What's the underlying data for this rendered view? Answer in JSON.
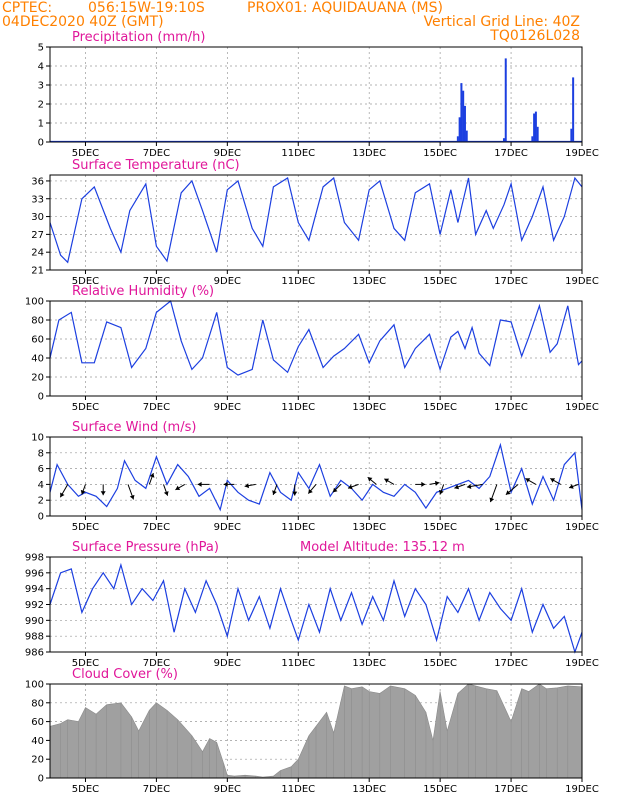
{
  "header": {
    "source": "CPTEC:",
    "coords": "056:15W-19:10S",
    "station": "PROX01: AQUIDAUANA (MS)",
    "run": "04DEC2020 40Z (GMT)",
    "grid_note": "Vertical Grid Line: 40Z",
    "model_code": "TQ0126L028"
  },
  "x_axis": {
    "start_day": 4,
    "end_day": 19,
    "tick_labels": [
      "5DEC",
      "7DEC",
      "9DEC",
      "11DEC",
      "13DEC",
      "15DEC",
      "17DEC",
      "19DEC"
    ],
    "tick_days": [
      5,
      7,
      9,
      11,
      13,
      15,
      17,
      19
    ]
  },
  "colors": {
    "line": "#1c3fe0",
    "title": "#e0179a",
    "header": "#ff8000",
    "cloud": "#a0a0a0",
    "arrow": "#000000"
  },
  "chart_data": [
    {
      "type": "bar",
      "title": "Precipitation (mm/h)",
      "ylim": [
        0,
        5
      ],
      "yticks": [
        "0",
        "1",
        "2",
        "3",
        "4",
        "5"
      ],
      "grid": true,
      "x": [
        11.0,
        11.3,
        11.5,
        12.0,
        15.5,
        15.55,
        15.6,
        15.65,
        15.7,
        15.75,
        16.8,
        16.85,
        17.6,
        17.65,
        17.7,
        17.75,
        18.7,
        18.75
      ],
      "values": [
        0.02,
        0.02,
        0.02,
        0.03,
        0.3,
        1.3,
        3.1,
        2.7,
        1.9,
        0.6,
        0.2,
        4.4,
        0.3,
        1.5,
        1.6,
        0.8,
        0.7,
        3.4
      ]
    },
    {
      "type": "line",
      "title": "Surface Temperature (nC)",
      "ylim": [
        21,
        37
      ],
      "yticks": [
        "21",
        "24",
        "27",
        "30",
        "33",
        "36"
      ],
      "grid": true,
      "x": [
        4.0,
        4.3,
        4.5,
        4.9,
        5.25,
        5.7,
        6.0,
        6.25,
        6.7,
        7.0,
        7.3,
        7.7,
        8.0,
        8.3,
        8.7,
        9.0,
        9.3,
        9.7,
        10.0,
        10.3,
        10.7,
        11.0,
        11.3,
        11.7,
        12.0,
        12.3,
        12.7,
        13.0,
        13.3,
        13.7,
        14.0,
        14.3,
        14.7,
        15.0,
        15.3,
        15.5,
        15.8,
        16.0,
        16.3,
        16.5,
        16.8,
        17.0,
        17.3,
        17.6,
        17.9,
        18.2,
        18.5,
        18.8,
        19.0
      ],
      "values": [
        29,
        23.5,
        22.3,
        33,
        35,
        28,
        24,
        31,
        35.5,
        25,
        22.5,
        34,
        36,
        31,
        24,
        34.5,
        36,
        28,
        25,
        35,
        36.5,
        29,
        26,
        35,
        36.5,
        29,
        26,
        34.5,
        36,
        28,
        26,
        34,
        35.5,
        27,
        34.5,
        29,
        36.5,
        27,
        31,
        28,
        32,
        35.5,
        26,
        30,
        35,
        26,
        30,
        36.5,
        35
      ]
    },
    {
      "type": "line",
      "title": "Relative Humidity (%)",
      "ylim": [
        0,
        100
      ],
      "yticks": [
        "0",
        "20",
        "40",
        "60",
        "80",
        "100"
      ],
      "grid": true,
      "x": [
        4.0,
        4.25,
        4.6,
        4.9,
        5.25,
        5.6,
        6.0,
        6.3,
        6.7,
        7.0,
        7.4,
        7.7,
        8.0,
        8.3,
        8.7,
        9.0,
        9.3,
        9.7,
        10.0,
        10.3,
        10.7,
        11.0,
        11.3,
        11.7,
        12.0,
        12.3,
        12.7,
        13.0,
        13.3,
        13.7,
        14.0,
        14.3,
        14.7,
        15.0,
        15.3,
        15.5,
        15.7,
        15.9,
        16.1,
        16.4,
        16.7,
        17.0,
        17.3,
        17.5,
        17.8,
        18.1,
        18.3,
        18.6,
        18.9,
        19.0
      ],
      "values": [
        40,
        80,
        88,
        35,
        35,
        78,
        72,
        30,
        50,
        88,
        100,
        58,
        28,
        40,
        88,
        30,
        22,
        28,
        80,
        38,
        25,
        52,
        70,
        30,
        42,
        50,
        65,
        35,
        58,
        75,
        30,
        50,
        65,
        28,
        62,
        68,
        50,
        72,
        45,
        32,
        80,
        78,
        42,
        62,
        95,
        46,
        55,
        95,
        33,
        37
      ]
    },
    {
      "type": "line",
      "title": "Surface Wind (m/s)",
      "ylim": [
        0,
        10
      ],
      "yticks": [
        "0",
        "2",
        "4",
        "6",
        "8",
        "10"
      ],
      "grid": true,
      "x": [
        4.0,
        4.2,
        4.5,
        4.8,
        5.0,
        5.3,
        5.6,
        5.9,
        6.1,
        6.4,
        6.7,
        7.0,
        7.3,
        7.6,
        7.9,
        8.2,
        8.5,
        8.8,
        9.0,
        9.3,
        9.6,
        9.9,
        10.2,
        10.5,
        10.8,
        11.0,
        11.3,
        11.6,
        11.9,
        12.2,
        12.5,
        12.8,
        13.1,
        13.4,
        13.7,
        14.0,
        14.3,
        14.6,
        14.9,
        15.2,
        15.5,
        15.8,
        16.1,
        16.4,
        16.7,
        17.0,
        17.3,
        17.6,
        17.9,
        18.2,
        18.5,
        18.8,
        19.0
      ],
      "values": [
        3,
        6.5,
        4,
        2.5,
        3,
        2.5,
        1.2,
        3.5,
        7,
        4.5,
        3.5,
        7.5,
        4,
        6.5,
        5,
        2.5,
        3.5,
        0.8,
        4.5,
        3,
        2,
        1.5,
        5.5,
        3,
        2,
        5.5,
        3.5,
        6.5,
        2.5,
        4.5,
        3.5,
        2,
        4,
        3,
        2.5,
        4,
        3,
        1,
        3,
        3.5,
        4,
        4.5,
        3.5,
        5,
        9,
        3,
        6,
        1.5,
        5,
        2,
        6.5,
        8,
        0.8
      ],
      "arrows": [
        {
          "x": 4.5,
          "dir": 210,
          "speed": 2.2
        },
        {
          "x": 5.0,
          "dir": 200,
          "speed": 1.2
        },
        {
          "x": 5.5,
          "dir": 180,
          "speed": 1.2
        },
        {
          "x": 6.2,
          "dir": 160,
          "speed": 2.5
        },
        {
          "x": 6.8,
          "dir": 20,
          "speed": 1.5
        },
        {
          "x": 7.2,
          "dir": 160,
          "speed": 1.5
        },
        {
          "x": 7.8,
          "dir": 240,
          "speed": 1.2
        },
        {
          "x": 8.5,
          "dir": 270,
          "speed": 1.5
        },
        {
          "x": 9.2,
          "dir": 270,
          "speed": 1.2
        },
        {
          "x": 9.8,
          "dir": 260,
          "speed": 1.3
        },
        {
          "x": 10.4,
          "dir": 200,
          "speed": 1.3
        },
        {
          "x": 10.9,
          "dir": 180,
          "speed": 1.3
        },
        {
          "x": 11.5,
          "dir": 220,
          "speed": 1.5
        },
        {
          "x": 12.2,
          "dir": 225,
          "speed": 1.3
        },
        {
          "x": 12.7,
          "dir": 250,
          "speed": 1.3
        },
        {
          "x": 13.2,
          "dir": 310,
          "speed": 1.3
        },
        {
          "x": 13.7,
          "dir": 300,
          "speed": 1.3
        },
        {
          "x": 14.3,
          "dir": 90,
          "speed": 1.0
        },
        {
          "x": 14.7,
          "dir": 80,
          "speed": 1.0
        },
        {
          "x": 15.1,
          "dir": 200,
          "speed": 1.2
        },
        {
          "x": 15.7,
          "dir": 250,
          "speed": 1.3
        },
        {
          "x": 16.2,
          "dir": 260,
          "speed": 2.5
        },
        {
          "x": 16.6,
          "dir": 200,
          "speed": 3.2
        },
        {
          "x": 17.2,
          "dir": 230,
          "speed": 2.5
        },
        {
          "x": 17.7,
          "dir": 300,
          "speed": 1.5
        },
        {
          "x": 18.4,
          "dir": 300,
          "speed": 1.5
        },
        {
          "x": 18.9,
          "dir": 250,
          "speed": 1.0
        }
      ]
    },
    {
      "type": "line",
      "title": "Surface Pressure (hPa)",
      "annotation": "Model Altitude: 135.12 m",
      "ylim": [
        986,
        998
      ],
      "yticks": [
        "986",
        "988",
        "990",
        "992",
        "994",
        "996",
        "998"
      ],
      "grid": true,
      "x": [
        4.0,
        4.3,
        4.6,
        4.9,
        5.2,
        5.5,
        5.8,
        6.0,
        6.3,
        6.6,
        6.9,
        7.2,
        7.5,
        7.8,
        8.1,
        8.4,
        8.7,
        9.0,
        9.3,
        9.6,
        9.9,
        10.2,
        10.5,
        10.8,
        11.0,
        11.3,
        11.6,
        11.9,
        12.2,
        12.5,
        12.8,
        13.1,
        13.4,
        13.7,
        14.0,
        14.3,
        14.6,
        14.9,
        15.2,
        15.5,
        15.8,
        16.1,
        16.4,
        16.7,
        17.0,
        17.3,
        17.6,
        17.9,
        18.2,
        18.5,
        18.8,
        19.0
      ],
      "values": [
        992,
        996,
        996.5,
        991,
        994,
        996,
        994,
        997,
        992,
        994,
        992.5,
        995,
        988.5,
        994,
        991,
        995,
        992,
        988,
        994,
        990,
        993,
        989,
        994,
        990,
        987.5,
        992,
        988.5,
        994,
        990,
        993.5,
        989.5,
        993,
        990,
        995,
        990.5,
        994,
        992,
        987.5,
        993,
        991,
        994,
        990,
        993.5,
        991.5,
        990,
        994,
        988.5,
        992,
        989,
        990.5,
        986,
        988.5
      ]
    },
    {
      "type": "area",
      "title": "Cloud Cover (%)",
      "ylim": [
        0,
        100
      ],
      "yticks": [
        "0",
        "20",
        "40",
        "60",
        "80",
        "100"
      ],
      "grid": true,
      "x": [
        4.0,
        4.3,
        4.5,
        4.8,
        5.0,
        5.3,
        5.6,
        6.0,
        6.3,
        6.5,
        6.8,
        7.0,
        7.3,
        7.6,
        8.0,
        8.3,
        8.5,
        8.7,
        8.9,
        9.0,
        9.2,
        9.5,
        9.8,
        10.0,
        10.3,
        10.5,
        10.8,
        11.0,
        11.3,
        11.5,
        11.8,
        12.0,
        12.3,
        12.5,
        12.8,
        13.0,
        13.3,
        13.6,
        14.0,
        14.3,
        14.6,
        14.8,
        15.0,
        15.2,
        15.5,
        15.8,
        16.0,
        16.3,
        16.6,
        17.0,
        17.3,
        17.5,
        17.8,
        18.0,
        18.3,
        18.6,
        19.0
      ],
      "values": [
        55,
        58,
        62,
        60,
        75,
        68,
        78,
        80,
        65,
        50,
        72,
        80,
        72,
        62,
        45,
        28,
        42,
        38,
        15,
        3,
        2,
        3,
        2,
        1,
        2,
        8,
        12,
        20,
        45,
        55,
        70,
        48,
        98,
        95,
        97,
        92,
        90,
        98,
        95,
        88,
        70,
        40,
        92,
        50,
        90,
        100,
        98,
        95,
        93,
        60,
        95,
        92,
        100,
        95,
        96,
        98,
        97
      ]
    }
  ]
}
